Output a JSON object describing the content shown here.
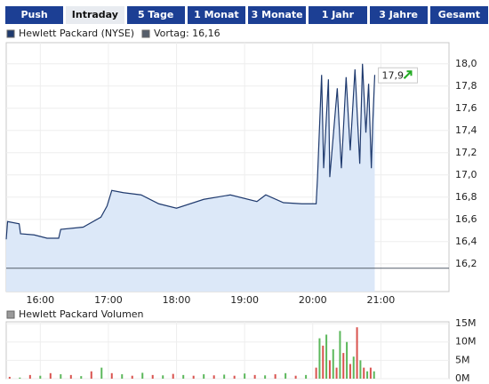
{
  "tabs": [
    "Push",
    "Intraday",
    "5 Tage",
    "1 Monat",
    "3 Monate",
    "1 Jahr",
    "3 Jahre",
    "Gesamt"
  ],
  "active_tab": 1,
  "chart_data": [
    {
      "type": "line",
      "x": [
        15.5,
        15.52,
        15.69,
        15.71,
        15.91,
        16.1,
        16.27,
        16.3,
        16.63,
        16.89,
        16.98,
        17.05,
        17.22,
        17.48,
        17.74,
        18.0,
        18.4,
        18.79,
        19.18,
        19.31,
        19.57,
        19.84,
        20.05,
        20.07,
        20.13,
        20.16,
        20.23,
        20.25,
        20.36,
        20.42,
        20.49,
        20.55,
        20.62,
        20.69,
        20.73,
        20.78,
        20.82,
        20.86,
        20.88,
        20.91
      ],
      "series": [
        {
          "name": "Hewlett Packard (NYSE)",
          "color": "#1f3a6e",
          "values": [
            16.42,
            16.58,
            16.56,
            16.47,
            16.46,
            16.43,
            16.43,
            16.51,
            16.53,
            16.62,
            16.72,
            16.86,
            16.84,
            16.82,
            16.74,
            16.7,
            16.78,
            16.82,
            16.76,
            16.82,
            16.75,
            16.74,
            16.74,
            16.98,
            17.9,
            17.06,
            17.86,
            16.98,
            17.78,
            17.06,
            17.88,
            17.22,
            17.95,
            17.1,
            18.0,
            17.38,
            17.82,
            17.06,
            17.46,
            17.9
          ]
        }
      ],
      "area_color": "#dce8f8",
      "last_label": "17,9",
      "reference": {
        "value": 16.16,
        "label": "Vortag: 16,16",
        "color": "#555e6b"
      },
      "xlim": [
        15.5,
        22
      ],
      "xticks": [
        {
          "value": 16,
          "label": "16:00"
        },
        {
          "value": 17,
          "label": "17:00"
        },
        {
          "value": 18,
          "label": "18:00"
        },
        {
          "value": 19,
          "label": "19:00"
        },
        {
          "value": 20,
          "label": "20:00"
        },
        {
          "value": 21,
          "label": "21:00"
        }
      ],
      "ylim": [
        15.95,
        18.19
      ],
      "yticks": [
        {
          "value": 16.2,
          "label": "16,2"
        },
        {
          "value": 16.4,
          "label": "16,4"
        },
        {
          "value": 16.6,
          "label": "16,6"
        },
        {
          "value": 16.8,
          "label": "16,8"
        },
        {
          "value": 17.0,
          "label": "17,0"
        },
        {
          "value": 17.2,
          "label": "17,2"
        },
        {
          "value": 17.4,
          "label": "17,4"
        },
        {
          "value": 17.6,
          "label": "17,6"
        },
        {
          "value": 17.8,
          "label": "17,8"
        },
        {
          "value": 18.0,
          "label": "18,0"
        }
      ],
      "grid": true
    },
    {
      "type": "bar",
      "x": [
        15.55,
        15.7,
        15.85,
        16.0,
        16.15,
        16.3,
        16.45,
        16.6,
        16.75,
        16.9,
        17.05,
        17.2,
        17.35,
        17.5,
        17.65,
        17.8,
        17.95,
        18.1,
        18.25,
        18.4,
        18.55,
        18.7,
        18.85,
        19.0,
        19.15,
        19.3,
        19.45,
        19.6,
        19.75,
        19.9,
        20.05,
        20.1,
        20.15,
        20.2,
        20.25,
        20.3,
        20.35,
        20.4,
        20.45,
        20.5,
        20.55,
        20.6,
        20.65,
        20.7,
        20.75,
        20.8,
        20.85,
        20.9
      ],
      "series": [
        {
          "name": "Hewlett Packard Volumen",
          "color": "#9a9a9a",
          "values": [
            0.5,
            0.3,
            1.0,
            0.8,
            1.5,
            1.2,
            1.0,
            0.7,
            2.0,
            3.0,
            1.5,
            1.2,
            0.8,
            1.6,
            1.0,
            0.9,
            1.3,
            1.0,
            0.8,
            1.2,
            0.9,
            1.1,
            0.8,
            1.4,
            1.0,
            0.9,
            1.2,
            1.5,
            0.8,
            1.0,
            3.0,
            11.0,
            9.0,
            12.0,
            5.0,
            8.0,
            3.0,
            13.0,
            7.0,
            10.0,
            4.0,
            6.0,
            14.0,
            5.0,
            3.0,
            2.0,
            3.0,
            2.0
          ]
        }
      ],
      "bar_colors": [
        "#d9534f",
        "#5cb85c"
      ],
      "xlim": [
        15.5,
        22
      ],
      "ylim": [
        0,
        15.5
      ],
      "yticks": [
        {
          "value": 0,
          "label": "0M"
        },
        {
          "value": 5,
          "label": "5M"
        },
        {
          "value": 10,
          "label": "10M"
        },
        {
          "value": 15,
          "label": "15M"
        }
      ],
      "grid": true
    }
  ]
}
